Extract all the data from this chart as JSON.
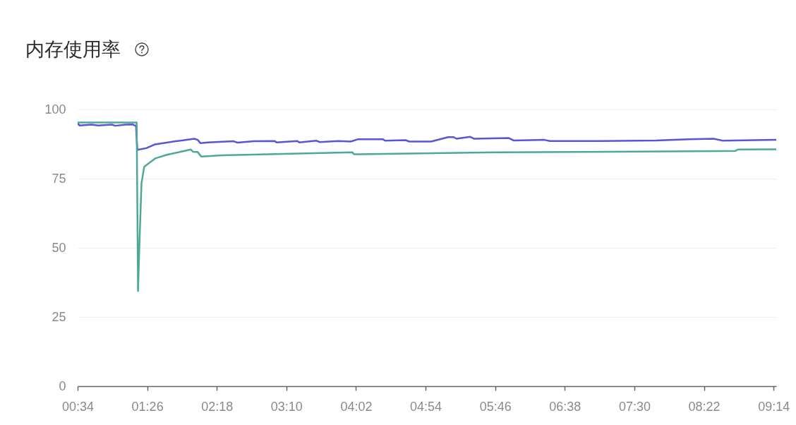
{
  "chart_data": {
    "type": "line",
    "title": "内存使用率",
    "xlim": [
      0.5667,
      9.267
    ],
    "xticks": [
      {
        "value": 0.5667,
        "label": "00:34"
      },
      {
        "value": 1.4333,
        "label": "01:26"
      },
      {
        "value": 2.3,
        "label": "02:18"
      },
      {
        "value": 3.1667,
        "label": "03:10"
      },
      {
        "value": 4.0333,
        "label": "04:02"
      },
      {
        "value": 4.9,
        "label": "04:54"
      },
      {
        "value": 5.7667,
        "label": "05:46"
      },
      {
        "value": 6.6333,
        "label": "06:38"
      },
      {
        "value": 7.5,
        "label": "07:30"
      },
      {
        "value": 8.3667,
        "label": "08:22"
      },
      {
        "value": 9.2333,
        "label": "09:14"
      }
    ],
    "ylim": [
      0,
      100
    ],
    "yticks": [
      0,
      25,
      50,
      75,
      100
    ],
    "grid": "y",
    "series": [
      {
        "color": "#5856d6",
        "x": [
          0.567,
          0.592,
          0.738,
          0.823,
          0.994,
          1.037,
          1.165,
          1.25,
          1.276,
          1.293,
          1.31,
          1.421,
          1.533,
          1.789,
          2.02,
          2.062,
          2.097,
          2.191,
          2.507,
          2.558,
          2.763,
          3.02,
          3.045,
          3.302,
          3.327,
          3.541,
          3.584,
          3.814,
          3.968,
          4.054,
          4.37,
          4.396,
          4.652,
          4.695,
          4.969,
          5.182,
          5.251,
          5.285,
          5.456,
          5.507,
          5.934,
          5.994,
          6.379,
          6.447,
          7.088,
          7.772,
          8.174,
          8.49,
          8.601,
          9.267
        ],
        "values": [
          94.9,
          94.2,
          94.5,
          94.2,
          94.5,
          94.1,
          94.5,
          94.6,
          94.2,
          94.2,
          85.4,
          86.0,
          87.4,
          88.5,
          89.4,
          89.0,
          87.8,
          88.1,
          88.5,
          88.0,
          88.5,
          88.6,
          88.1,
          88.6,
          88.1,
          88.7,
          88.2,
          88.6,
          88.4,
          89.2,
          89.2,
          88.7,
          88.9,
          88.4,
          88.4,
          90.0,
          90.0,
          89.4,
          90.1,
          89.4,
          89.7,
          88.8,
          89.0,
          88.6,
          88.6,
          88.8,
          89.2,
          89.4,
          88.7,
          89.0
        ]
      },
      {
        "color": "#4ea89a",
        "x": [
          0.567,
          1.302,
          1.319,
          1.336,
          1.362,
          1.396,
          1.447,
          1.533,
          1.678,
          1.909,
          1.977,
          2.003,
          2.062,
          2.105,
          2.362,
          3.986,
          4.011,
          5.78,
          7.173,
          8.755,
          8.789,
          9.267
        ],
        "values": [
          95.3,
          95.3,
          34.4,
          51.1,
          73.2,
          79.3,
          80.4,
          82.3,
          83.6,
          85.1,
          85.5,
          84.7,
          84.6,
          83.0,
          83.4,
          84.5,
          83.8,
          84.5,
          84.7,
          85.0,
          85.5,
          85.6
        ]
      }
    ]
  }
}
